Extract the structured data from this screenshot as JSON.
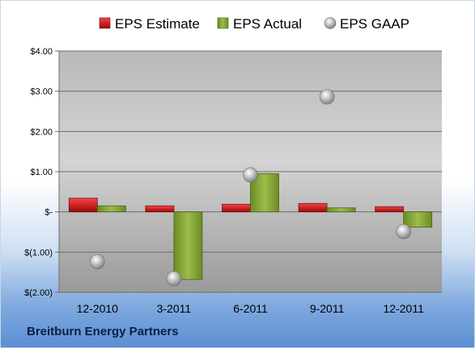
{
  "company": "Breitburn Energy Partners",
  "chart_data": {
    "type": "bar",
    "categories": [
      "12-2010",
      "3-2011",
      "6-2011",
      "9-2011",
      "12-2011"
    ],
    "series": [
      {
        "name": "EPS Estimate",
        "type": "bar",
        "color": "#cc1f1f",
        "values": [
          0.34,
          0.15,
          0.19,
          0.21,
          0.13
        ]
      },
      {
        "name": "EPS Actual",
        "type": "bar",
        "color": "#7a9b2d",
        "values": [
          0.15,
          -1.68,
          0.95,
          0.1,
          -0.38
        ]
      },
      {
        "name": "EPS GAAP",
        "type": "scatter",
        "color": "#b0b0b0",
        "values": [
          -1.24,
          -1.66,
          0.92,
          2.86,
          -0.49
        ]
      }
    ],
    "ylim": [
      -2,
      4
    ],
    "yticks": [
      4,
      3,
      2,
      1,
      0,
      -1,
      -2
    ],
    "ytick_labels": [
      "$4.00",
      "$3.00",
      "$2.00",
      "$1.00",
      "$-",
      "$(1.00)",
      "$(2.00)"
    ],
    "grid": true,
    "legend": "top"
  }
}
